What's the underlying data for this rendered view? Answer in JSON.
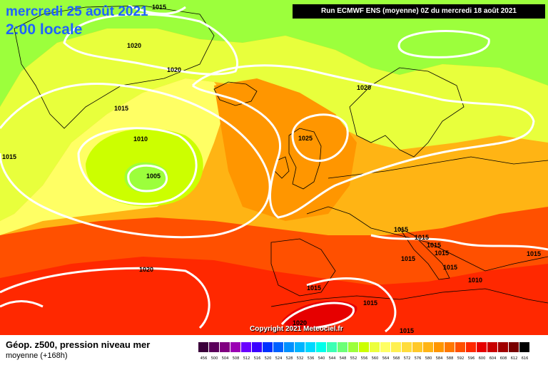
{
  "header": {
    "date": "mercredi 25 août 2021",
    "time": "2:00 locale",
    "run_info": "Run ECMWF ENS (moyenne) 0Z du mercredi 18 août 2021"
  },
  "footer": {
    "title": "Géop. z500, pression niveau mer",
    "subtitle": "moyenne   (+168h)",
    "copyright": "Copyright 2021 Meteociel.fr"
  },
  "scale": {
    "values": [
      "456",
      "500",
      "504",
      "508",
      "512",
      "516",
      "520",
      "524",
      "528",
      "532",
      "536",
      "540",
      "544",
      "548",
      "552",
      "556",
      "560",
      "564",
      "568",
      "572",
      "576",
      "580",
      "584",
      "588",
      "592",
      "596",
      "600",
      "604",
      "608",
      "612",
      "616"
    ],
    "colors": [
      "#3b003b",
      "#5a005a",
      "#800080",
      "#9b00b4",
      "#6a00ff",
      "#3a00ff",
      "#0030ff",
      "#0060ff",
      "#0090ff",
      "#00b4ff",
      "#00d8ff",
      "#00ffea",
      "#3cffb4",
      "#6cff78",
      "#9cff3c",
      "#ccff00",
      "#ecff3c",
      "#ffff64",
      "#fff050",
      "#ffdc3c",
      "#ffc828",
      "#ffb414",
      "#ff9600",
      "#ff7800",
      "#ff5000",
      "#ff2800",
      "#e60000",
      "#c80000",
      "#a00000",
      "#780000",
      "#000000"
    ]
  },
  "isobar_labels": [
    "1015",
    "1020",
    "1020",
    "1015",
    "1010",
    "1005",
    "1015",
    "1020",
    "1020",
    "1025",
    "1015",
    "1015",
    "1015",
    "1015",
    "1015",
    "1010",
    "1015",
    "1015",
    "1015",
    "1015",
    "1015",
    "1020"
  ],
  "colors": {
    "title": "#1e63ff",
    "isobar_line": "#ffffff",
    "land_border": "#000000"
  }
}
